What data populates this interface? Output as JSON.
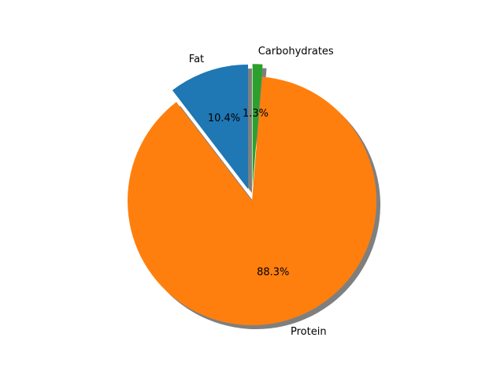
{
  "chart_data": {
    "type": "pie",
    "title": "",
    "slices": [
      {
        "label": "Fat",
        "value": 10.4,
        "pct_label": "10.4%",
        "color": "#1f77b4",
        "explode": 0.1
      },
      {
        "label": "Protein",
        "value": 88.3,
        "pct_label": "88.3%",
        "color": "#ff7f0e",
        "explode": 0
      },
      {
        "label": "Carbohydrates",
        "value": 1.3,
        "pct_label": "1.3%",
        "color": "#2ca02c",
        "explode": 0.1
      }
    ],
    "start_angle_deg": 90,
    "direction": "counterclockwise",
    "shadow": true,
    "shadow_color": "#7f7f7f",
    "legend": "none"
  }
}
